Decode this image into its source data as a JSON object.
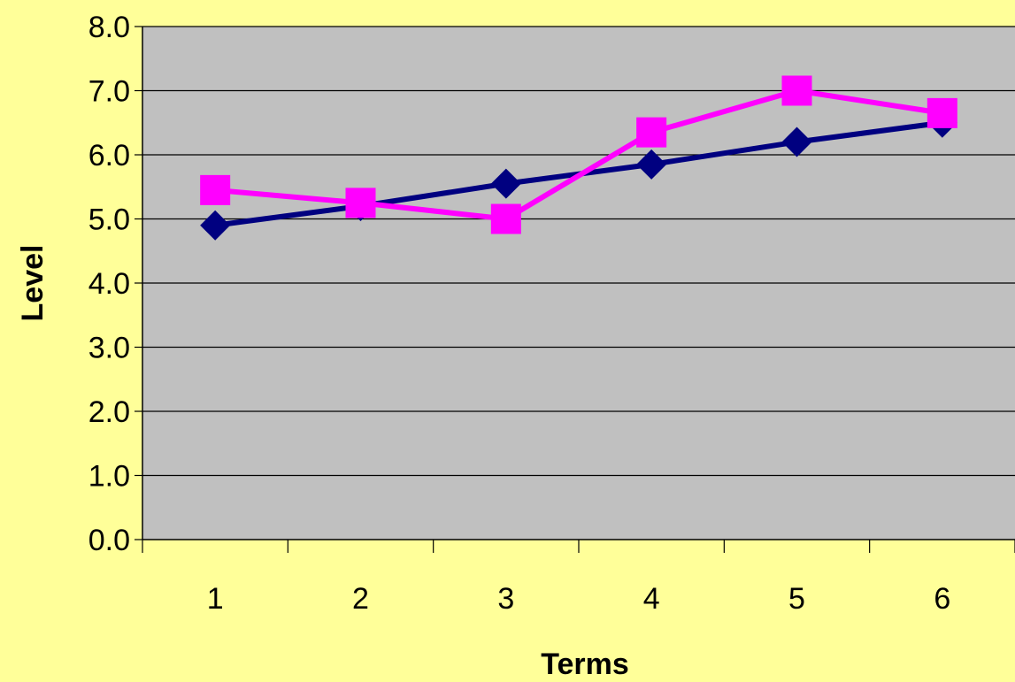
{
  "colors": {
    "page_background": "#ffff99",
    "plot_background": "#c0c0c0",
    "gridline": "#000000",
    "series_1": "#000080",
    "series_2": "#ff00ff"
  },
  "chart_data": {
    "type": "line",
    "title": "",
    "xlabel": "Terms",
    "ylabel": "Level",
    "categories": [
      "1",
      "2",
      "3",
      "4",
      "5",
      "6"
    ],
    "ylim": [
      0,
      8
    ],
    "yticks": [
      "0.0",
      "1.0",
      "2.0",
      "3.0",
      "4.0",
      "5.0",
      "6.0",
      "7.0",
      "8.0"
    ],
    "grid": "horizontal",
    "legend": "none",
    "series": [
      {
        "marker": "diamond",
        "color": "#000080",
        "values": [
          4.9,
          5.2,
          5.55,
          5.85,
          6.2,
          6.5
        ]
      },
      {
        "marker": "square",
        "color": "#ff00ff",
        "values": [
          5.45,
          5.25,
          5.0,
          6.35,
          7.0,
          6.65
        ]
      }
    ]
  }
}
